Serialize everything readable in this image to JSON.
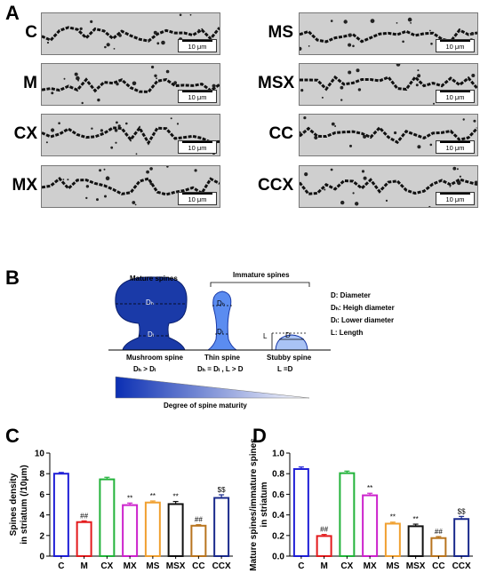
{
  "panelA": {
    "letter": "A",
    "scale_label": "10 μm",
    "rows_left": [
      "C",
      "M",
      "CX",
      "MX"
    ],
    "rows_right": [
      "MS",
      "MSX",
      "CC",
      "CCX"
    ]
  },
  "panelB": {
    "letter": "B",
    "mature_title": "Mature spines",
    "immature_title": "Immature spines",
    "dh": "Dₕ",
    "dl": "Dₗ",
    "d": "D",
    "l": "L",
    "mushroom_name": "Mushroom spine",
    "mushroom_rule": "Dₕ > Dₗ",
    "thin_name": "Thin spine",
    "thin_rule": "Dₕ = Dₗ , L > D",
    "stubby_name": "Stubby spine",
    "stubby_rule": "L =D",
    "legend": [
      "D: Diameter",
      "Dₕ: Heigh diameter",
      "Dₗ: Lower diameter",
      "L: Length"
    ],
    "gradient_label": "Degree of spine maturity"
  },
  "panelC": {
    "letter": "C",
    "chart_data": {
      "type": "bar",
      "categories": [
        "C",
        "M",
        "CX",
        "MX",
        "MS",
        "MSX",
        "CC",
        "CCX"
      ],
      "values": [
        8.0,
        3.3,
        7.45,
        4.95,
        5.2,
        5.05,
        2.95,
        5.65
      ],
      "errors": [
        0.12,
        0.12,
        0.2,
        0.2,
        0.15,
        0.25,
        0.1,
        0.3
      ],
      "annotations": [
        "",
        "##",
        "",
        "**",
        "**",
        "**",
        "##",
        "$$"
      ],
      "colors": [
        "#1f1fd6",
        "#e31a1c",
        "#22b33a",
        "#cc22cc",
        "#f0a030",
        "#111111",
        "#b8741e",
        "#1a2a8c"
      ],
      "ylabel_line1": "Spines density",
      "ylabel_line2": "in striatum (/10μm)",
      "ylim": [
        0,
        10
      ],
      "yticks": [
        "0",
        "2",
        "4",
        "6",
        "8",
        "10"
      ],
      "grid": false
    }
  },
  "panelD": {
    "letter": "D",
    "chart_data": {
      "type": "bar",
      "categories": [
        "C",
        "M",
        "CX",
        "MX",
        "MS",
        "MSX",
        "CC",
        "CCX"
      ],
      "values": [
        0.845,
        0.195,
        0.805,
        0.59,
        0.315,
        0.29,
        0.175,
        0.36
      ],
      "errors": [
        0.02,
        0.015,
        0.02,
        0.02,
        0.015,
        0.02,
        0.015,
        0.025
      ],
      "annotations": [
        "",
        "##",
        "",
        "**",
        "**",
        "**",
        "##",
        "$$"
      ],
      "colors": [
        "#1f1fd6",
        "#e31a1c",
        "#22b33a",
        "#cc22cc",
        "#f0a030",
        "#111111",
        "#b8741e",
        "#1a2a8c"
      ],
      "ylabel_line1": "Mature spines/immature spines",
      "ylabel_line2": "in striatum",
      "ylim": [
        0,
        1.0
      ],
      "yticks": [
        "0.0",
        "0.2",
        "0.4",
        "0.6",
        "0.8",
        "1.0"
      ],
      "grid": false
    }
  }
}
